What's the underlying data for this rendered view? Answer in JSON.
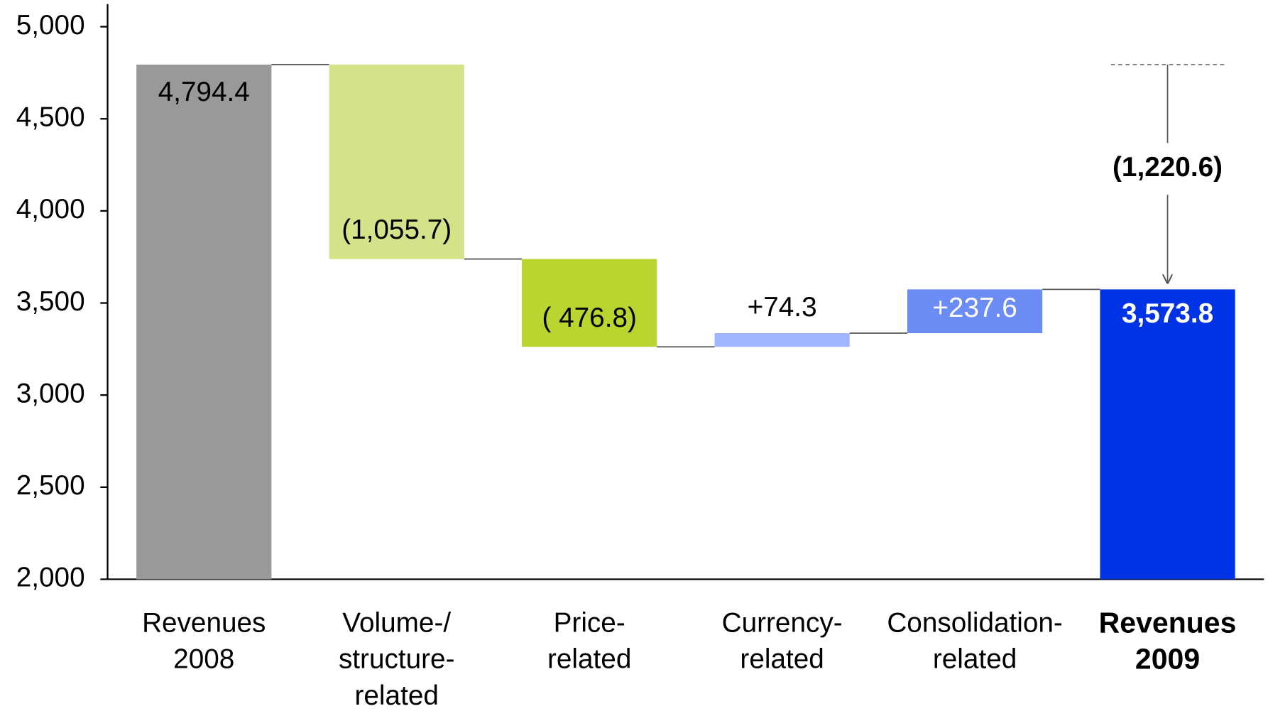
{
  "chart_data": {
    "type": "waterfall",
    "categories": [
      [
        "Revenues",
        "2008"
      ],
      [
        "Volume-/",
        "structure-",
        "related"
      ],
      [
        "Price-",
        "related"
      ],
      [
        "Currency-",
        "related"
      ],
      [
        "Consolidation-",
        "related"
      ],
      [
        "Revenues",
        "2009"
      ]
    ],
    "values": [
      4794.4,
      -1055.7,
      -476.8,
      74.3,
      237.6,
      3573.8
    ],
    "value_labels": [
      "4,794.4",
      "(1,055.7)",
      "( 476.8)",
      "+74.3",
      "+237.6",
      "3,573.8"
    ],
    "bar_kinds": [
      "total",
      "delta",
      "delta",
      "delta",
      "delta",
      "total"
    ],
    "colors": [
      "#999999",
      "#d4e38a",
      "#b9d52f",
      "#a0b4ff",
      "#6b8cf5",
      "#0033e6"
    ],
    "annotation": {
      "value": -1220.6,
      "label": "(1,220.6)"
    },
    "ylim": [
      2000,
      5000
    ],
    "yticks": [
      {
        "value": 2000,
        "label": "2,000"
      },
      {
        "value": 2500,
        "label": "2,500"
      },
      {
        "value": 3000,
        "label": "3,000"
      },
      {
        "value": 3500,
        "label": "3,500"
      },
      {
        "value": 4000,
        "label": "4,000"
      },
      {
        "value": 4500,
        "label": "4,500"
      },
      {
        "value": 5000,
        "label": "5,000"
      }
    ],
    "grid": false
  }
}
